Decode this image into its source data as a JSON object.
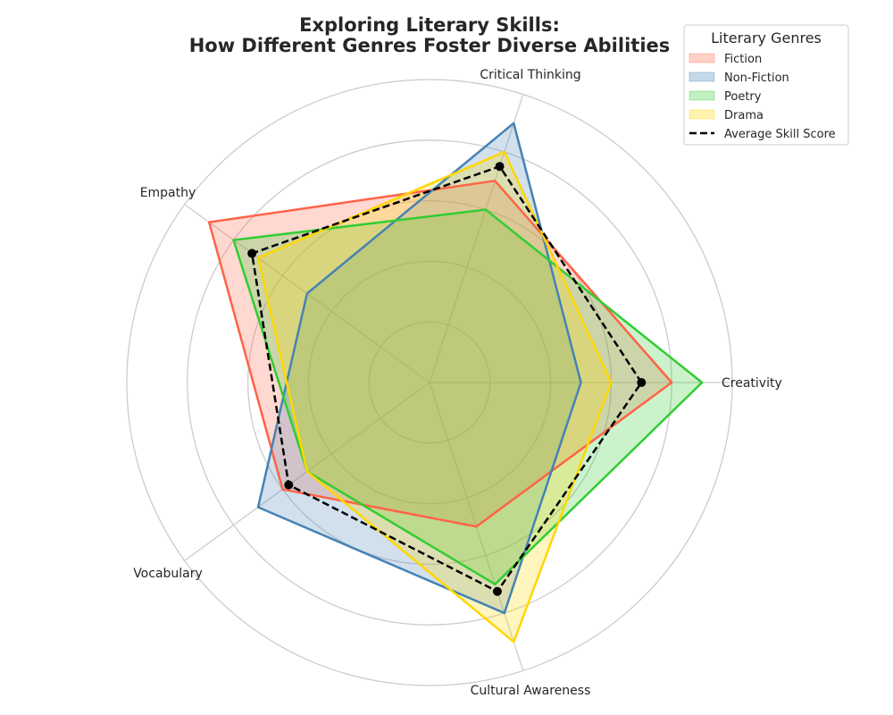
{
  "chart_data": {
    "type": "radar",
    "title_lines": [
      "Exploring Literary Skills:",
      "How Different Genres Foster Diverse Abilities"
    ],
    "axes": [
      "Creativity",
      "Critical Thinking",
      "Empathy",
      "Vocabulary",
      "Cultural Awareness"
    ],
    "rlim": [
      0,
      10
    ],
    "grid": true,
    "legend": {
      "title": "Literary Genres",
      "placement": "top-right"
    },
    "series": [
      {
        "name": "Fiction",
        "values": [
          8,
          7,
          9,
          6,
          5
        ],
        "color": "#ff6347"
      },
      {
        "name": "Non-Fiction",
        "values": [
          5,
          9,
          5,
          7,
          8
        ],
        "color": "#4682b4"
      },
      {
        "name": "Poetry",
        "values": [
          9,
          6,
          8,
          5,
          7
        ],
        "color": "#32cd32"
      },
      {
        "name": "Drama",
        "values": [
          6,
          8,
          7,
          5,
          9
        ],
        "color": "#ffd700"
      }
    ],
    "average": {
      "name": "Average Skill Score",
      "values": [
        7,
        7.5,
        7.25,
        5.75,
        7.25
      ],
      "color": "#000000"
    }
  }
}
